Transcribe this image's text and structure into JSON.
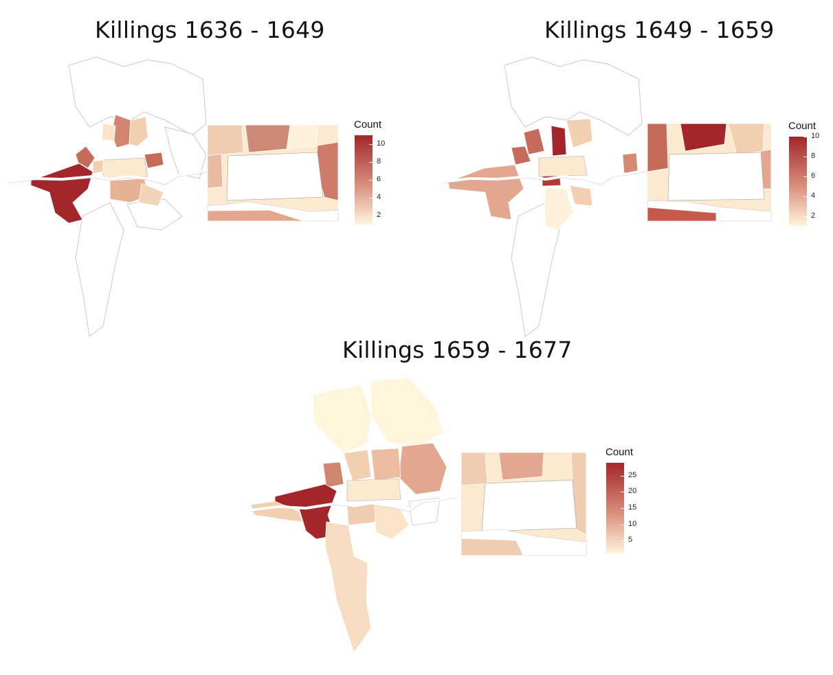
{
  "panels": [
    {
      "title": "Killings 1636 - 1649",
      "legend_title": "Count",
      "scale_min": 1,
      "scale_max": 11,
      "ticks": [
        "10",
        "8",
        "6",
        "4",
        "2"
      ],
      "tick_values": [
        10,
        8,
        6,
        4,
        2
      ]
    },
    {
      "title": "Killings 1649 - 1659",
      "legend_title": "Count",
      "scale_min": 1,
      "scale_max": 10,
      "ticks": [
        "10",
        "8",
        "6",
        "4",
        "2"
      ],
      "tick_values": [
        10,
        8,
        6,
        4,
        2
      ]
    },
    {
      "title": "Killings 1659 - 1677",
      "legend_title": "Count",
      "scale_min": 1,
      "scale_max": 29,
      "ticks": [
        "25",
        "20",
        "15",
        "10",
        "5"
      ],
      "tick_values": [
        25,
        20,
        15,
        10,
        5
      ]
    }
  ],
  "colors": {
    "low": "#fff4dc",
    "mid": "#e2a387",
    "high": "#a3262a",
    "river": "#ffffff",
    "outline": "#bdbdbd"
  }
}
